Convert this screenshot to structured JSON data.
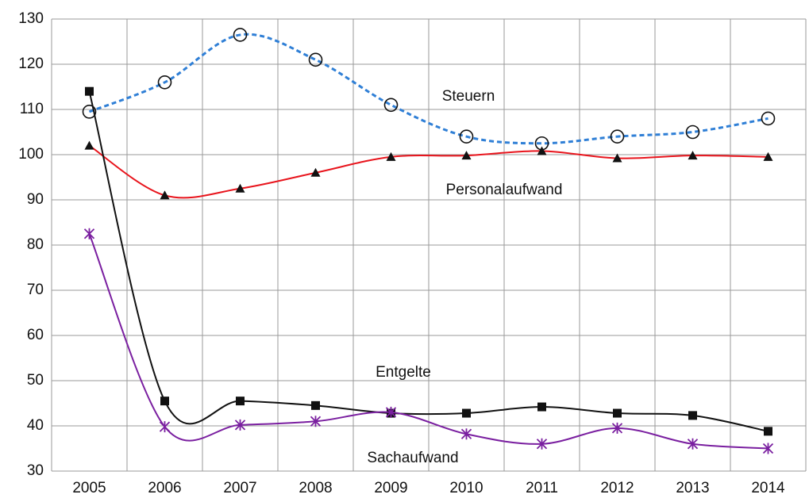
{
  "chart_data": {
    "type": "line",
    "categories": [
      "2005",
      "2006",
      "2007",
      "2008",
      "2009",
      "2010",
      "2011",
      "2012",
      "2013",
      "2014"
    ],
    "series": [
      {
        "name": "Steuern",
        "color": "#2f7fd6",
        "line_style": "dashed",
        "marker": "open-circle",
        "values": [
          109.5,
          116,
          126.5,
          121,
          111,
          104,
          102.5,
          104,
          105,
          108
        ]
      },
      {
        "name": "Personalaufwand",
        "color": "#e8141c",
        "line_style": "solid",
        "marker": "triangle",
        "values": [
          102,
          91,
          92.5,
          96,
          99.5,
          99.8,
          100.8,
          99.2,
          99.8,
          99.5
        ]
      },
      {
        "name": "Entgelte",
        "color": "#111111",
        "line_style": "solid",
        "marker": "square",
        "values": [
          114,
          45.5,
          45.5,
          44.5,
          42.8,
          42.8,
          44.2,
          42.8,
          42.3,
          38.8
        ]
      },
      {
        "name": "Sachaufwand",
        "color": "#7a1fa0",
        "line_style": "solid",
        "marker": "asterisk",
        "values": [
          82.5,
          39.8,
          40.2,
          41,
          43,
          38.2,
          36,
          39.5,
          36,
          35
        ]
      }
    ],
    "ylim": [
      30,
      130
    ],
    "yticks": [
      30,
      40,
      50,
      60,
      70,
      80,
      90,
      100,
      110,
      120,
      130
    ],
    "grid": true,
    "smooth": true
  }
}
